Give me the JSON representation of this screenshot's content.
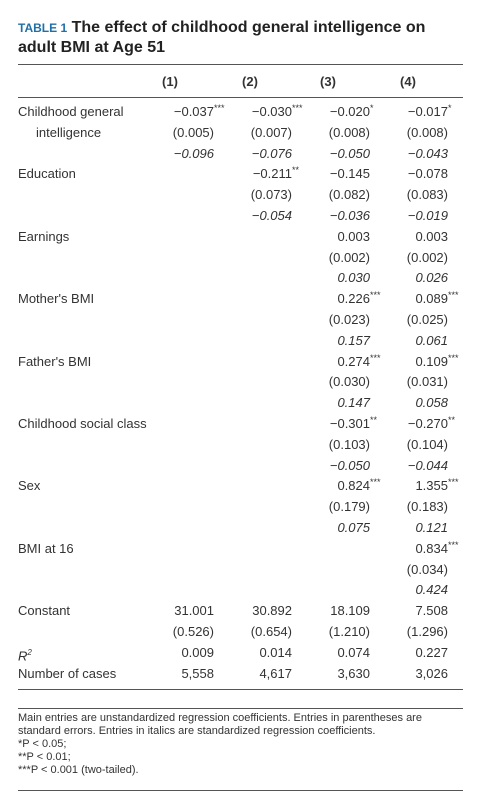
{
  "header": {
    "label": "TABLE 1",
    "title": "The effect of childhood general intelligence on adult BMI at Age 51"
  },
  "table": {
    "columns": [
      "(1)",
      "(2)",
      "(3)",
      "(4)"
    ],
    "rows": [
      {
        "label": [
          "Childhood general",
          "intelligence"
        ],
        "cells": [
          {
            "b": "−0.037",
            "sig": "***",
            "se": "(0.005)",
            "beta": "−0.096"
          },
          {
            "b": "−0.030",
            "sig": "***",
            "se": "(0.007)",
            "beta": "−0.076"
          },
          {
            "b": "−0.020",
            "sig": "*",
            "se": "(0.008)",
            "beta": "−0.050"
          },
          {
            "b": "−0.017",
            "sig": "*",
            "se": "(0.008)",
            "beta": "−0.043"
          }
        ]
      },
      {
        "label": [
          "Education"
        ],
        "cells": [
          null,
          {
            "b": "−0.211",
            "sig": "**",
            "se": "(0.073)",
            "beta": "−0.054"
          },
          {
            "b": "−0.145",
            "se": "(0.082)",
            "beta": "−0.036"
          },
          {
            "b": "−0.078",
            "se": "(0.083)",
            "beta": "−0.019"
          }
        ]
      },
      {
        "label": [
          "Earnings"
        ],
        "cells": [
          null,
          null,
          {
            "b": "0.003",
            "se": "(0.002)",
            "beta": "0.030"
          },
          {
            "b": "0.003",
            "se": "(0.002)",
            "beta": "0.026"
          }
        ]
      },
      {
        "label": [
          "Mother's BMI"
        ],
        "cells": [
          null,
          null,
          {
            "b": "0.226",
            "sig": "***",
            "se": "(0.023)",
            "beta": "0.157"
          },
          {
            "b": "0.089",
            "sig": "***",
            "se": "(0.025)",
            "beta": "0.061"
          }
        ]
      },
      {
        "label": [
          "Father's BMI"
        ],
        "cells": [
          null,
          null,
          {
            "b": "0.274",
            "sig": "***",
            "se": "(0.030)",
            "beta": "0.147"
          },
          {
            "b": "0.109",
            "sig": "***",
            "se": "(0.031)",
            "beta": "0.058"
          }
        ]
      },
      {
        "label": [
          "Childhood social class"
        ],
        "cells": [
          null,
          null,
          {
            "b": "−0.301",
            "sig": "**",
            "se": "(0.103)",
            "beta": "−0.050"
          },
          {
            "b": "−0.270",
            "sig": "**",
            "se": "(0.104)",
            "beta": "−0.044"
          }
        ]
      },
      {
        "label": [
          "Sex"
        ],
        "cells": [
          null,
          null,
          {
            "b": "0.824",
            "sig": "***",
            "se": "(0.179)",
            "beta": "0.075"
          },
          {
            "b": "1.355",
            "sig": "***",
            "se": "(0.183)",
            "beta": "0.121"
          }
        ]
      },
      {
        "label": [
          "BMI at 16"
        ],
        "cells": [
          null,
          null,
          null,
          {
            "b": "0.834",
            "sig": "***",
            "se": "(0.034)",
            "beta": "0.424"
          }
        ]
      },
      {
        "label": [
          "Constant"
        ],
        "cells": [
          {
            "b": "31.001",
            "se": "(0.526)"
          },
          {
            "b": "30.892",
            "se": "(0.654)"
          },
          {
            "b": "18.109",
            "se": "(1.210)"
          },
          {
            "b": "7.508",
            "se": "(1.296)"
          }
        ]
      },
      {
        "label": [
          "R"
        ],
        "label_sup": "2",
        "cells": [
          {
            "b": "0.009"
          },
          {
            "b": "0.014"
          },
          {
            "b": "0.074"
          },
          {
            "b": "0.227"
          }
        ]
      },
      {
        "label": [
          "Number of cases"
        ],
        "cells": [
          {
            "b": "5,558"
          },
          {
            "b": "4,617"
          },
          {
            "b": "3,630"
          },
          {
            "b": "3,026"
          }
        ]
      }
    ]
  },
  "footnote": {
    "text": "Main entries are unstandardized regression coefficients. Entries in parentheses are standard errors. Entries in italics are standardized regression coefficients.",
    "notes": [
      "*P < 0.05;",
      "**P < 0.01;",
      "***P < 0.001 (two-tailed)."
    ]
  }
}
